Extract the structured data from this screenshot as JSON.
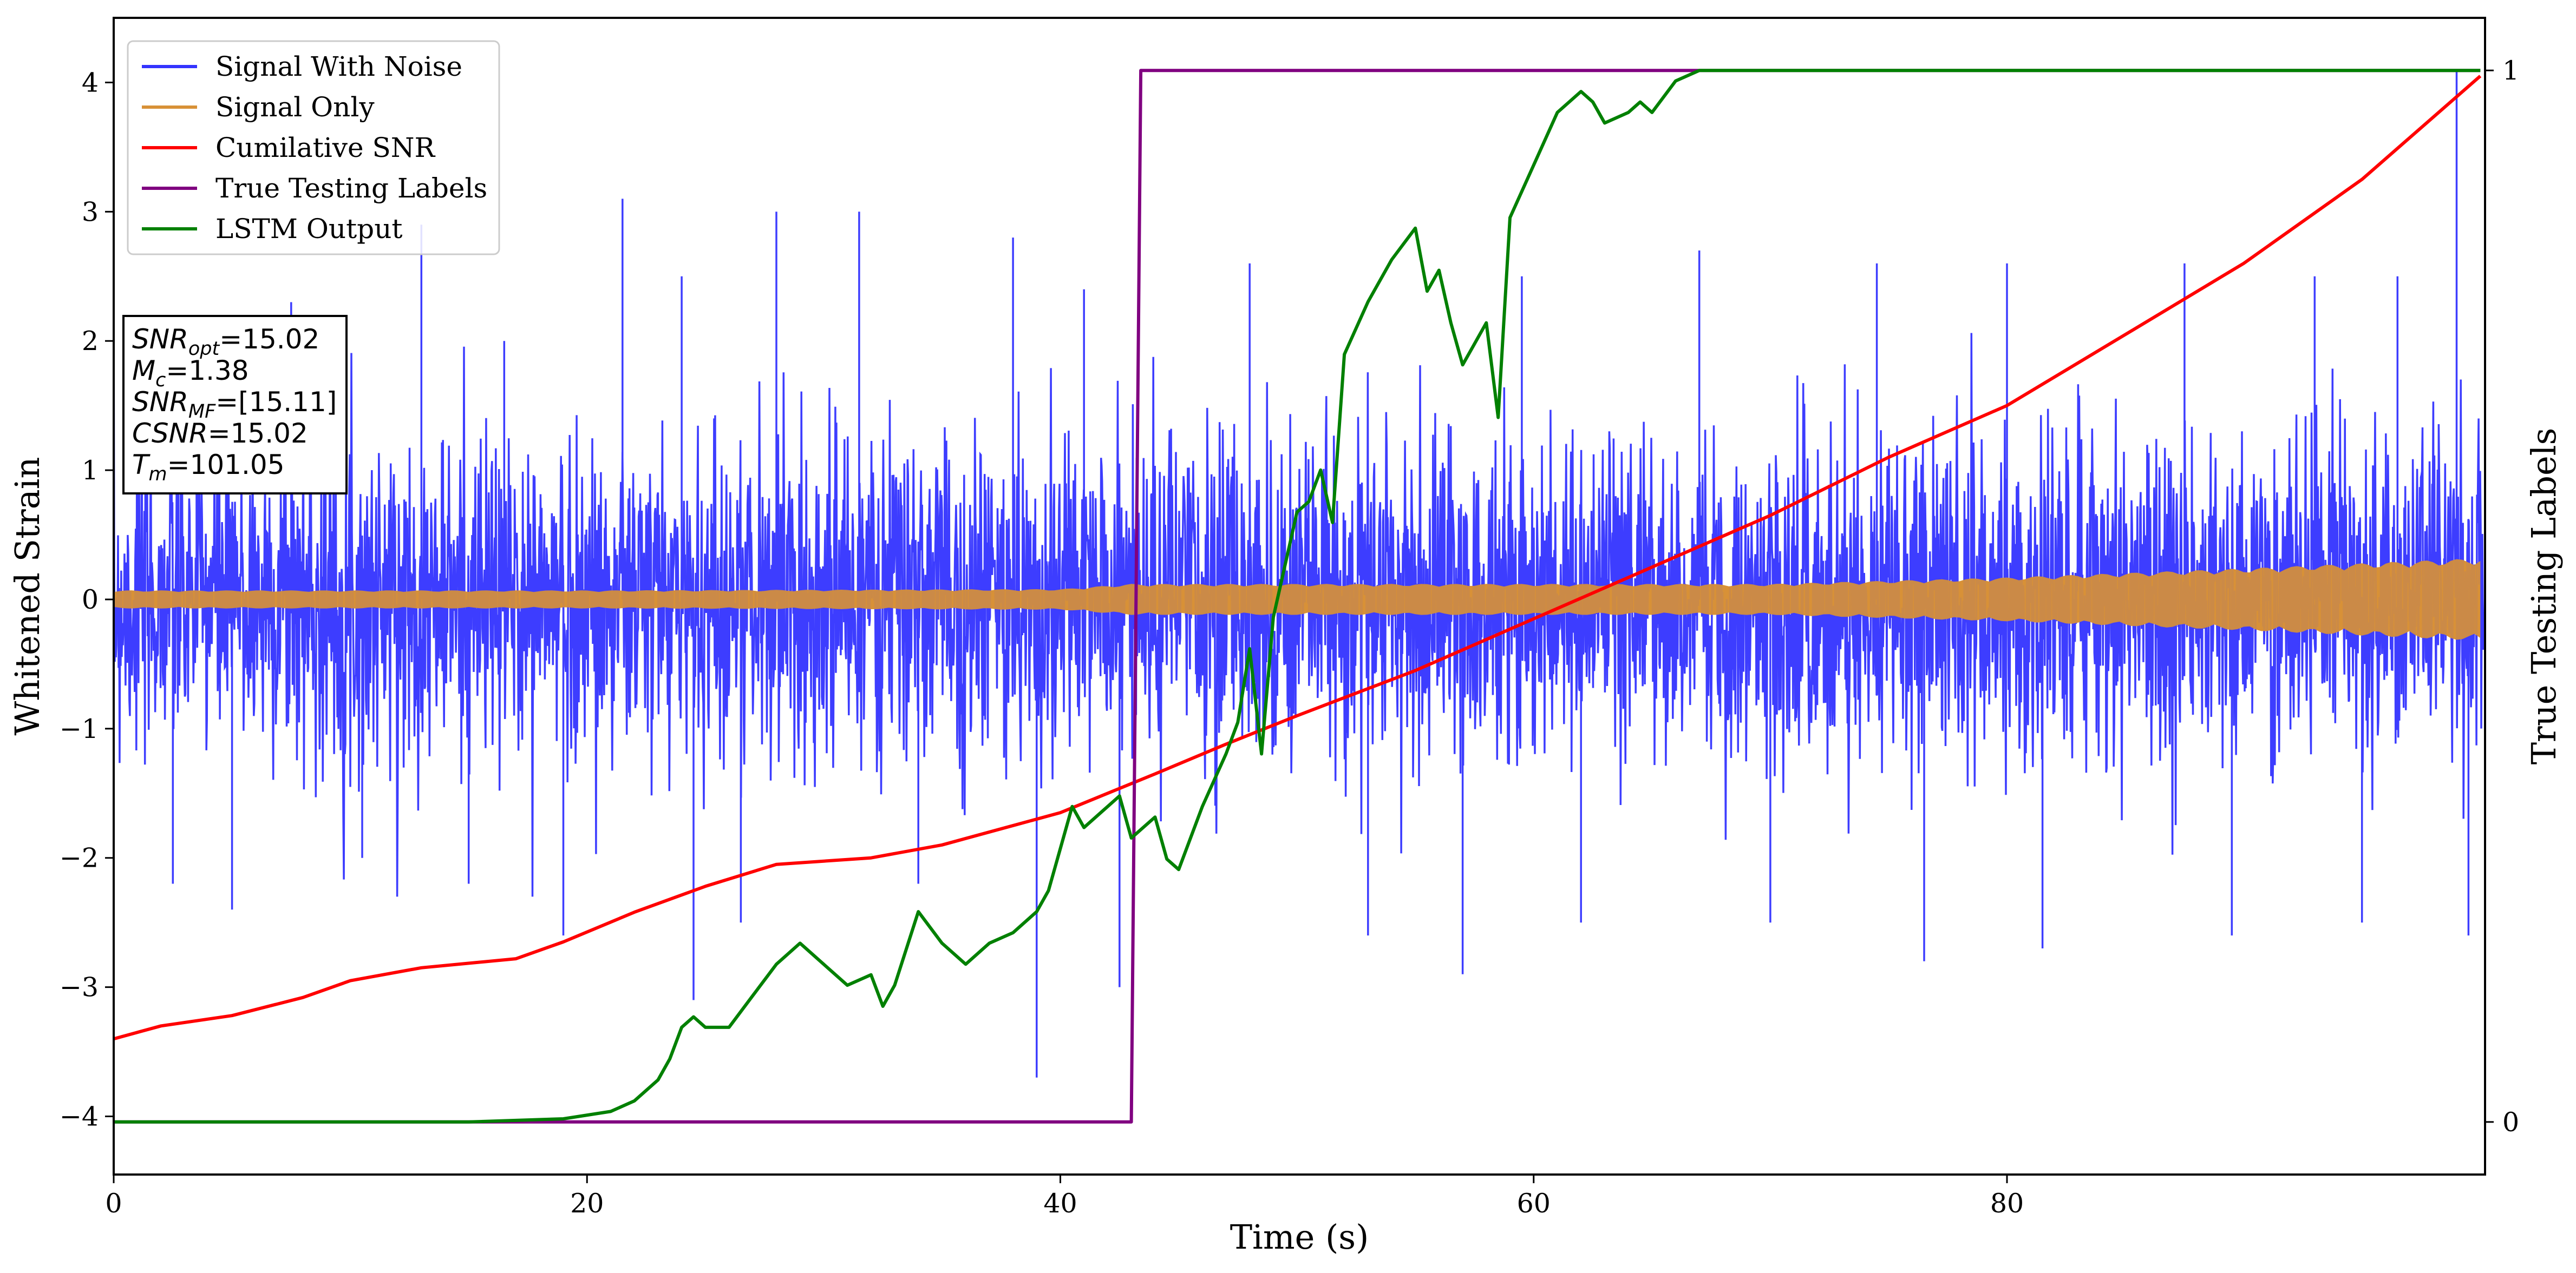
{
  "chart_data": {
    "type": "line",
    "xlabel": "Time (s)",
    "ylabel": "Whitened Strain",
    "y2label": "True Testing Labels",
    "xlim": [
      0,
      100.2
    ],
    "ylim": [
      -4.45,
      4.5
    ],
    "y2lim": [
      -0.05,
      1.05
    ],
    "xticks": [
      0,
      20,
      40,
      60,
      80
    ],
    "yticks": [
      -4,
      -3,
      -2,
      -1,
      0,
      1,
      2,
      3,
      4
    ],
    "y2ticks": [
      0,
      1
    ],
    "legend_position": "top-left",
    "series": [
      {
        "name": "Signal With Noise",
        "color": "#3333ff",
        "axis": "left",
        "kind": "noise",
        "typical_envelope": [
          -1.4,
          1.4
        ],
        "spikes": [
          {
            "x": 1.0,
            "y": 2.2
          },
          {
            "x": 2.5,
            "y": -2.2
          },
          {
            "x": 3.5,
            "y": 2.1
          },
          {
            "x": 5.0,
            "y": -2.4
          },
          {
            "x": 7.5,
            "y": 2.3
          },
          {
            "x": 10.5,
            "y": -2.0
          },
          {
            "x": 13.0,
            "y": 2.9
          },
          {
            "x": 15.0,
            "y": -2.2
          },
          {
            "x": 16.5,
            "y": 2.0
          },
          {
            "x": 19.0,
            "y": -2.6
          },
          {
            "x": 21.5,
            "y": 3.1
          },
          {
            "x": 24.0,
            "y": 2.5
          },
          {
            "x": 24.5,
            "y": -3.1
          },
          {
            "x": 26.5,
            "y": -2.5
          },
          {
            "x": 28.0,
            "y": 3.0
          },
          {
            "x": 31.5,
            "y": 3.0
          },
          {
            "x": 34.0,
            "y": -2.2
          },
          {
            "x": 38.0,
            "y": 2.8
          },
          {
            "x": 39.0,
            "y": -3.7
          },
          {
            "x": 41.0,
            "y": 2.4
          },
          {
            "x": 42.5,
            "y": -3.0
          },
          {
            "x": 48.0,
            "y": 2.6
          },
          {
            "x": 53.0,
            "y": -2.6
          },
          {
            "x": 57.0,
            "y": -2.9
          },
          {
            "x": 59.5,
            "y": 2.5
          },
          {
            "x": 62.0,
            "y": -2.5
          },
          {
            "x": 67.0,
            "y": 2.7
          },
          {
            "x": 70.0,
            "y": -2.5
          },
          {
            "x": 74.5,
            "y": 2.6
          },
          {
            "x": 76.5,
            "y": -2.8
          },
          {
            "x": 80.0,
            "y": 2.6
          },
          {
            "x": 81.5,
            "y": -2.7
          },
          {
            "x": 87.5,
            "y": 2.6
          },
          {
            "x": 89.5,
            "y": -2.6
          },
          {
            "x": 93.0,
            "y": 2.5
          },
          {
            "x": 95.0,
            "y": -2.5
          },
          {
            "x": 96.5,
            "y": 2.5
          },
          {
            "x": 99.0,
            "y": 4.1
          },
          {
            "x": 99.5,
            "y": -2.6
          }
        ]
      },
      {
        "name": "Signal Only",
        "color": "#d89137",
        "axis": "left",
        "kind": "envelope",
        "amplitude": {
          "x": [
            0,
            20,
            40,
            43,
            70,
            80,
            90,
            100
          ],
          "y": [
            0.07,
            0.07,
            0.08,
            0.12,
            0.12,
            0.17,
            0.24,
            0.32
          ]
        }
      },
      {
        "name": "Cumilative SNR",
        "color": "#ff0000",
        "axis": "left",
        "x": [
          0,
          2,
          5,
          8,
          10,
          13,
          17,
          19,
          22,
          25,
          28,
          32,
          35,
          40,
          44,
          47,
          50,
          55,
          60,
          65,
          70,
          75,
          80,
          85,
          90,
          95,
          100
        ],
        "y": [
          -3.4,
          -3.3,
          -3.22,
          -3.08,
          -2.95,
          -2.85,
          -2.78,
          -2.65,
          -2.42,
          -2.22,
          -2.05,
          -2.0,
          -1.9,
          -1.65,
          -1.35,
          -1.12,
          -0.9,
          -0.55,
          -0.15,
          0.25,
          0.65,
          1.1,
          1.5,
          2.05,
          2.6,
          3.25,
          4.05
        ]
      },
      {
        "name": "True Testing Labels",
        "color": "#800080",
        "axis": "right",
        "x": [
          0,
          43.0,
          43.4,
          100
        ],
        "y": [
          0,
          0,
          1,
          1
        ]
      },
      {
        "name": "LSTM Output",
        "color": "#008000",
        "axis": "right",
        "x": [
          0,
          15,
          19,
          21,
          22,
          23,
          23.5,
          24,
          24.5,
          25,
          25.5,
          26,
          27,
          28,
          29,
          30,
          31,
          32,
          32.5,
          33,
          34,
          35,
          36,
          37,
          38,
          39,
          39.5,
          40,
          40.5,
          41,
          42,
          42.5,
          43,
          44,
          44.5,
          45,
          46,
          47,
          47.5,
          48,
          48.5,
          49,
          50,
          50.5,
          51,
          51.5,
          52,
          53,
          54,
          55,
          55.5,
          56,
          56.5,
          57,
          57.5,
          58,
          58.5,
          59,
          60,
          61,
          62,
          62.5,
          63,
          64,
          64.5,
          65,
          66,
          67,
          68,
          100
        ],
        "y": [
          0,
          0,
          0.003,
          0.01,
          0.02,
          0.04,
          0.06,
          0.09,
          0.1,
          0.09,
          0.09,
          0.09,
          0.12,
          0.15,
          0.17,
          0.15,
          0.13,
          0.14,
          0.11,
          0.13,
          0.2,
          0.17,
          0.15,
          0.17,
          0.18,
          0.2,
          0.22,
          0.26,
          0.3,
          0.28,
          0.3,
          0.31,
          0.27,
          0.29,
          0.25,
          0.24,
          0.3,
          0.35,
          0.38,
          0.45,
          0.35,
          0.48,
          0.58,
          0.59,
          0.62,
          0.57,
          0.73,
          0.78,
          0.82,
          0.85,
          0.79,
          0.81,
          0.76,
          0.72,
          0.74,
          0.76,
          0.67,
          0.86,
          0.91,
          0.96,
          0.98,
          0.97,
          0.95,
          0.96,
          0.97,
          0.96,
          0.99,
          1.0,
          1.0,
          1.0
        ]
      }
    ],
    "info_box": [
      {
        "var": "SNR",
        "sub": "opt",
        "value": "=15.02"
      },
      {
        "var": "M",
        "sub": "c",
        "value": "=1.38"
      },
      {
        "var": "SNR",
        "sub": "MF",
        "value": "=[15.11]"
      },
      {
        "var": "CSNR",
        "sub": "",
        "value": "=15.02"
      },
      {
        "var": "T",
        "sub": "m",
        "value": "=101.05"
      }
    ]
  }
}
